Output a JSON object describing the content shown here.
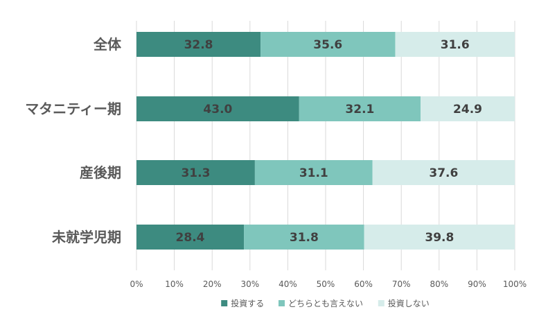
{
  "chart_data": {
    "type": "bar",
    "orientation": "horizontal",
    "stacked": true,
    "categories": [
      "全体",
      "マタニティー期",
      "産後期",
      "未就学児期"
    ],
    "series": [
      {
        "name": "投資する",
        "values": [
          32.8,
          43.0,
          31.3,
          28.4
        ],
        "color": "#3d8b80",
        "labels": [
          "32.8",
          "43.0",
          "31.3",
          "28.4"
        ]
      },
      {
        "name": "どちらとも言えない",
        "values": [
          35.6,
          32.1,
          31.1,
          31.8
        ],
        "color": "#7fc6bc",
        "labels": [
          "35.6",
          "32.1",
          "31.1",
          "31.8"
        ]
      },
      {
        "name": "投資しない",
        "values": [
          31.6,
          24.9,
          37.6,
          39.8
        ],
        "color": "#d6ecea",
        "labels": [
          "31.6",
          "24.9",
          "37.6",
          "39.8"
        ]
      }
    ],
    "xlim": [
      0,
      100
    ],
    "xticks": [
      "0%",
      "10%",
      "20%",
      "30%",
      "40%",
      "50%",
      "60%",
      "70%",
      "80%",
      "90%",
      "100%"
    ],
    "grid": true,
    "legend": "bottom",
    "title": "",
    "xlabel": "",
    "ylabel": ""
  }
}
